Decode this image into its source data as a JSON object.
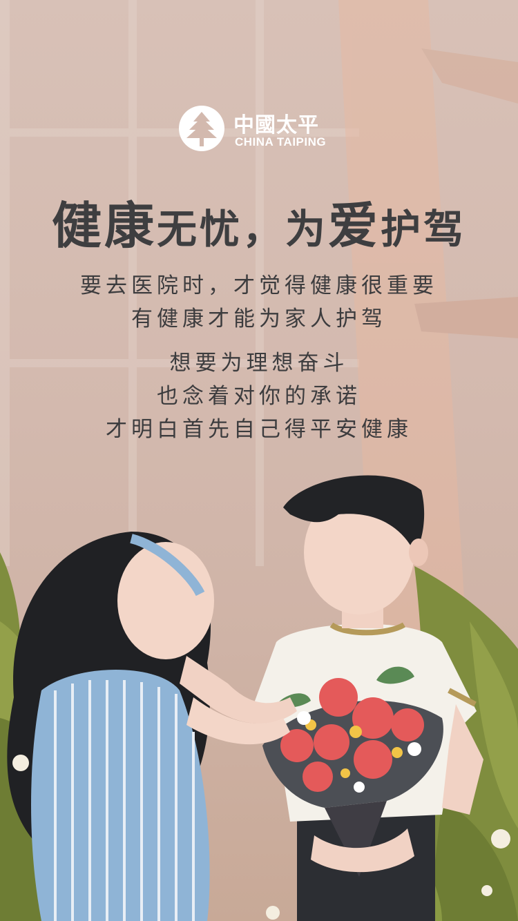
{
  "brand": {
    "logo_cn": "中國太平",
    "logo_en": "CHINA TAIPING"
  },
  "headline": {
    "part1": "健",
    "part2": "康",
    "part3": "无忧，为",
    "part4": "爱",
    "part5": "护驾"
  },
  "copy": {
    "line1": "要去医院时，才觉得健康很重要",
    "line2": "有健康才能为家人护驾",
    "line3": "想要为理想奋斗",
    "line4": "也念着对你的承诺",
    "line5": "才明白首先自己得平安健康"
  },
  "colors": {
    "background": "#d8c1b7",
    "text": "#3e3e40",
    "logo": "#ffffff",
    "dress_stripe": "#8fb4d6",
    "flowers": "#e45a5a",
    "leaves": "#7a8a3c"
  }
}
